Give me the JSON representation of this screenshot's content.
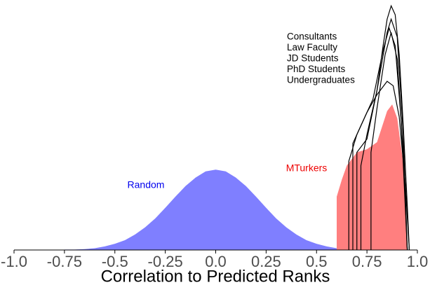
{
  "chart_data": {
    "type": "density",
    "xlabel": "Correlation to Predicted Ranks",
    "xlim": [
      -1.0,
      1.0
    ],
    "xticks": [
      {
        "value": -1.0,
        "label": "-1.0"
      },
      -0.75,
      -0.5,
      -0.25,
      {
        "value": 0,
        "label": "0.0"
      },
      0.25,
      0.5,
      0.75,
      {
        "value": 1.0,
        "label": "1.0"
      }
    ],
    "ylim": [
      0,
      5.6
    ],
    "series": [
      {
        "name": "Random",
        "color": "#7f7fff",
        "fill": true,
        "x": [
          -0.75,
          -0.7,
          -0.65,
          -0.6,
          -0.55,
          -0.5,
          -0.45,
          -0.4,
          -0.35,
          -0.3,
          -0.25,
          -0.2,
          -0.15,
          -0.1,
          -0.05,
          0,
          0.05,
          0.1,
          0.15,
          0.2,
          0.25,
          0.3,
          0.35,
          0.4,
          0.45,
          0.5,
          0.55,
          0.6,
          0.65,
          0.7
        ],
        "values": [
          0.01,
          0.01,
          0.02,
          0.04,
          0.08,
          0.14,
          0.22,
          0.35,
          0.51,
          0.71,
          0.95,
          1.2,
          1.44,
          1.63,
          1.77,
          1.81,
          1.77,
          1.63,
          1.44,
          1.2,
          0.95,
          0.71,
          0.51,
          0.35,
          0.22,
          0.14,
          0.08,
          0.04,
          0.02,
          0.01
        ]
      },
      {
        "name": "MTurkers",
        "color": "#ff7f7f",
        "fill": true,
        "x": [
          0.6,
          0.625,
          0.65,
          0.7,
          0.75,
          0.8,
          0.85,
          0.875,
          0.9,
          0.925,
          0.94,
          0.95
        ],
        "values": [
          1.2,
          1.58,
          1.9,
          2.2,
          2.27,
          2.43,
          3.13,
          3.28,
          2.97,
          2.12,
          1.5,
          0
        ]
      },
      {
        "name": "Consultants",
        "color": "#000000",
        "fill": false,
        "x": [
          0.72,
          0.75,
          0.8,
          0.83,
          0.85,
          0.87,
          0.89,
          0.91,
          0.93,
          0.95,
          0.96
        ],
        "values": [
          1.9,
          2.6,
          3.6,
          4.6,
          5.2,
          5.5,
          5.3,
          4.4,
          2.8,
          1.0,
          0
        ]
      },
      {
        "name": "Law Faculty",
        "color": "#000000",
        "fill": false,
        "x": [
          0.7,
          0.75,
          0.8,
          0.85,
          0.87,
          0.9,
          0.93,
          0.95
        ],
        "values": [
          2.2,
          2.5,
          3.6,
          4.9,
          5.2,
          4.8,
          2.6,
          0
        ]
      },
      {
        "name": "JD Students",
        "color": "#000000",
        "fill": false,
        "x": [
          0.68,
          0.72,
          0.78,
          0.83,
          0.86,
          0.89,
          0.92,
          0.95
        ],
        "values": [
          2.4,
          2.8,
          3.4,
          4.5,
          5.0,
          4.6,
          2.9,
          0
        ]
      },
      {
        "name": "PhD Students",
        "color": "#000000",
        "fill": false,
        "x": [
          0.77,
          0.8,
          0.84,
          0.87,
          0.9,
          0.93,
          0.95
        ],
        "values": [
          2.2,
          3.2,
          4.4,
          4.9,
          4.3,
          2.2,
          0
        ]
      },
      {
        "name": "Undergraduates",
        "color": "#000000",
        "fill": false,
        "x": [
          0.66,
          0.7,
          0.75,
          0.8,
          0.85,
          0.88,
          0.91,
          0.94,
          0.96
        ],
        "values": [
          2.0,
          2.6,
          3.1,
          3.5,
          3.8,
          3.7,
          3.0,
          1.5,
          0
        ]
      }
    ]
  }
}
